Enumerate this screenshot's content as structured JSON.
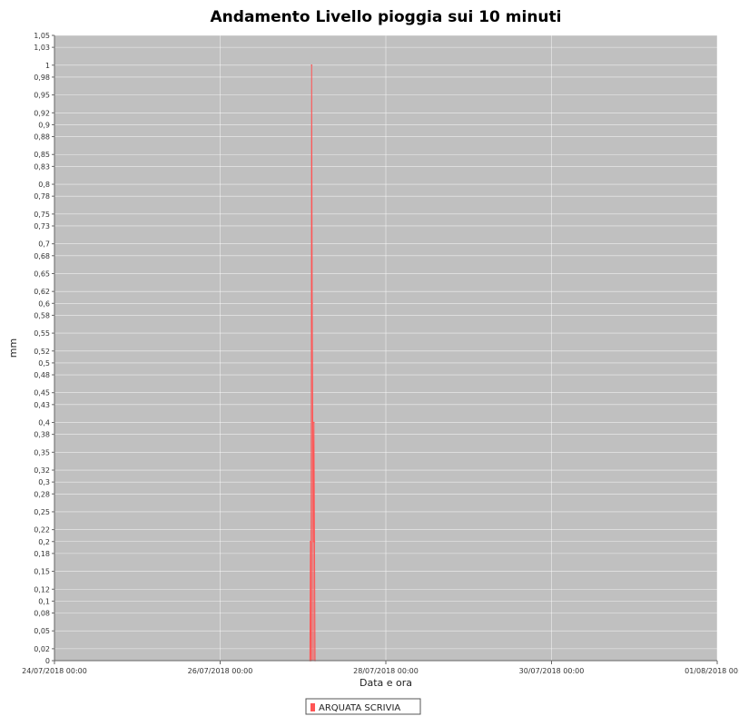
{
  "chart_data": {
    "type": "area",
    "title": "Andamento Livello pioggia sui 10 minuti",
    "xlabel": "Data e ora",
    "ylabel": "mm",
    "y_ticks": [
      "0",
      "0,02",
      "0,05",
      "0,08",
      "0,1",
      "0,12",
      "0,15",
      "0,18",
      "0,2",
      "0,22",
      "0,25",
      "0,28",
      "0,3",
      "0,32",
      "0,35",
      "0,38",
      "0,4",
      "0,43",
      "0,45",
      "0,48",
      "0,5",
      "0,52",
      "0,55",
      "0,58",
      "0,6",
      "0,62",
      "0,65",
      "0,68",
      "0,7",
      "0,73",
      "0,75",
      "0,78",
      "0,8",
      "0,83",
      "0,85",
      "0,88",
      "0,9",
      "0,92",
      "0,95",
      "0,98",
      "1",
      "1,03",
      "1,05"
    ],
    "x_ticks": [
      "24/07/2018 00:00",
      "26/07/2018 00:00",
      "28/07/2018 00:00",
      "30/07/2018 00:00",
      "01/08/2018 00:00"
    ],
    "x_range": [
      "2018-07-24 00:00",
      "2018-08-01 00:00"
    ],
    "ylim": [
      0,
      1.05
    ],
    "grid": true,
    "legend_position": "bottom-center",
    "plot_background": "#c0c0c0",
    "series": [
      {
        "name": "ARQUATA SCRIVIA",
        "color": "#ff5555",
        "x": [
          "2018-07-27 02:00",
          "2018-07-27 02:10",
          "2018-07-27 02:20",
          "2018-07-27 02:30",
          "2018-07-27 02:40",
          "2018-07-27 02:50",
          "2018-07-27 03:00",
          "2018-07-27 03:10",
          "2018-07-27 03:20",
          "2018-07-27 03:30"
        ],
        "y": [
          0,
          0.2,
          0,
          1.0,
          0.6,
          0.4,
          0.2,
          0.4,
          0.2,
          0
        ]
      }
    ]
  }
}
